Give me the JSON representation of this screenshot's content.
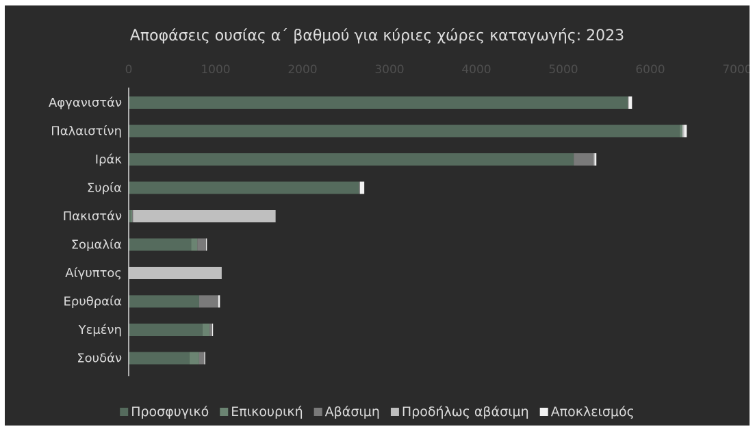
{
  "chart_data": {
    "type": "bar",
    "orientation": "horizontal",
    "stacked": true,
    "title": "Αποφάσεις ουσίας α΄ βαθμού για κύριες χώρες καταγωγής: 2023",
    "categories": [
      "Αφγανιστάν",
      "Παλαιστίνη",
      "Ιράκ",
      "Συρία",
      "Πακιστάν",
      "Σομαλία",
      "Αίγυπτος",
      "Ερυθραία",
      "Υεμένη",
      "Σουδάν"
    ],
    "xlim": [
      0,
      7000
    ],
    "xticks": [
      "0",
      "1000",
      "2000",
      "3000",
      "4000",
      "5000",
      "6000",
      "7000"
    ],
    "xaxis_position": "top",
    "grid": false,
    "legend_position": "bottom",
    "series": [
      {
        "name": "Προσφυγικό",
        "color": "#556b5d",
        "values": [
          5740,
          6340,
          5120,
          2650,
          20,
          720,
          0,
          810,
          850,
          700
        ]
      },
      {
        "name": "Επικουρική",
        "color": "#6b8472",
        "values": [
          0,
          30,
          0,
          0,
          20,
          70,
          0,
          0,
          80,
          110
        ]
      },
      {
        "name": "Αβάσιμη",
        "color": "#7a7a7a",
        "values": [
          10,
          0,
          230,
          10,
          10,
          100,
          0,
          220,
          30,
          60
        ]
      },
      {
        "name": "Προδήλως αβάσιμη",
        "color": "#bfbfbf",
        "values": [
          0,
          20,
          10,
          0,
          1640,
          0,
          1070,
          0,
          0,
          0
        ]
      },
      {
        "name": "Αποκλεισμός",
        "color": "#f2f2f2",
        "values": [
          40,
          30,
          20,
          50,
          0,
          10,
          0,
          20,
          10,
          10
        ]
      }
    ]
  }
}
